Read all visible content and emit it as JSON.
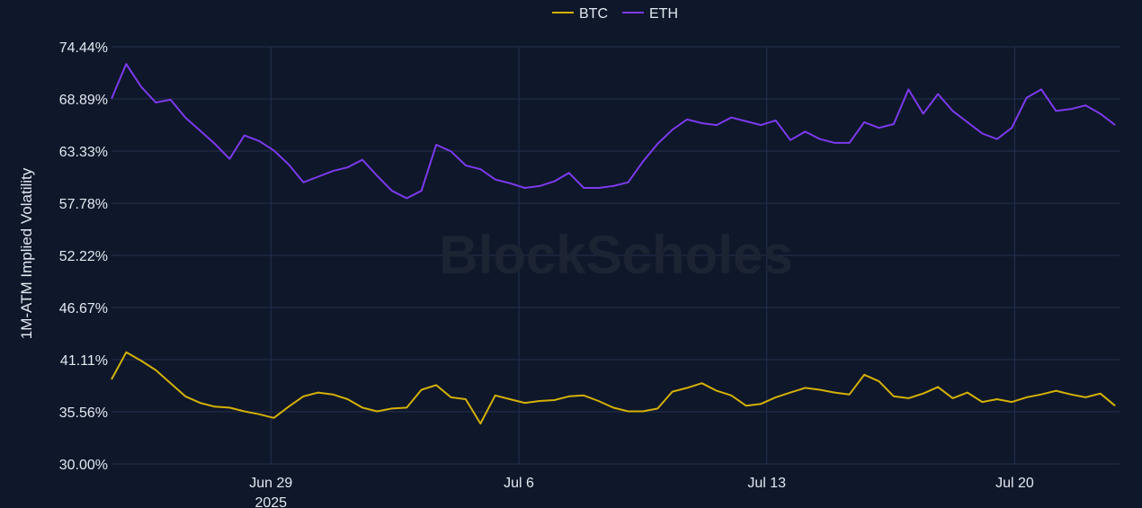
{
  "watermark": "BlockScholes",
  "colors": {
    "background": "#0f172a",
    "grid": "#24324f",
    "tick_text": "#e2e8f0",
    "watermark": "#1c2333",
    "btc": "#d4b106",
    "eth": "#7c3aed"
  },
  "chart_data": {
    "type": "line",
    "title": "",
    "xlabel": "",
    "ylabel": "1M-ATM Implied Volatility",
    "x_range": [
      "2025-06-24T12:00",
      "2025-07-22T23:00"
    ],
    "ylim": [
      30.0,
      74.44
    ],
    "y_ticks": [
      30.0,
      35.56,
      41.11,
      46.67,
      52.22,
      57.78,
      63.33,
      68.89,
      74.44
    ],
    "y_tick_labels": [
      "30.00%",
      "35.56%",
      "41.11%",
      "46.67%",
      "52.22%",
      "57.78%",
      "63.33%",
      "68.89%",
      "74.44%"
    ],
    "x_ticks": [
      "2025-06-29",
      "2025-07-06",
      "2025-07-13",
      "2025-07-20"
    ],
    "x_tick_labels": [
      "Jun 29",
      "Jul 6",
      "Jul 13",
      "Jul 20"
    ],
    "x_tick_year_label": "2025",
    "grid": true,
    "legend_position": "top-center",
    "series": [
      {
        "name": "BTC",
        "color": "#d4b106",
        "x": [
          "2025-06-24T12:00",
          "2025-06-24T22:00",
          "2025-06-25T08:00",
          "2025-06-25T18:00",
          "2025-06-26T04:00",
          "2025-06-26T14:00",
          "2025-06-27T00:00",
          "2025-06-27T10:00",
          "2025-06-27T20:00",
          "2025-06-28T06:00",
          "2025-06-28T16:00",
          "2025-06-29T02:00",
          "2025-06-29T12:00",
          "2025-06-29T22:00",
          "2025-06-30T08:00",
          "2025-06-30T18:00",
          "2025-07-01T04:00",
          "2025-07-01T14:00",
          "2025-07-02T00:00",
          "2025-07-02T10:00",
          "2025-07-02T20:00",
          "2025-07-03T06:00",
          "2025-07-03T16:00",
          "2025-07-04T02:00",
          "2025-07-04T12:00",
          "2025-07-04T22:00",
          "2025-07-05T08:00",
          "2025-07-05T18:00",
          "2025-07-06T04:00",
          "2025-07-06T14:00",
          "2025-07-07T00:00",
          "2025-07-07T10:00",
          "2025-07-07T20:00",
          "2025-07-08T06:00",
          "2025-07-08T16:00",
          "2025-07-09T02:00",
          "2025-07-09T12:00",
          "2025-07-09T22:00",
          "2025-07-10T08:00",
          "2025-07-10T18:00",
          "2025-07-11T04:00",
          "2025-07-11T14:00",
          "2025-07-12T00:00",
          "2025-07-12T10:00",
          "2025-07-12T20:00",
          "2025-07-13T06:00",
          "2025-07-13T16:00",
          "2025-07-14T02:00",
          "2025-07-14T12:00",
          "2025-07-14T22:00",
          "2025-07-15T08:00",
          "2025-07-15T18:00",
          "2025-07-16T04:00",
          "2025-07-16T14:00",
          "2025-07-17T00:00",
          "2025-07-17T10:00",
          "2025-07-17T20:00",
          "2025-07-18T06:00",
          "2025-07-18T16:00",
          "2025-07-19T02:00",
          "2025-07-19T12:00",
          "2025-07-19T22:00",
          "2025-07-20T08:00",
          "2025-07-20T18:00",
          "2025-07-21T04:00",
          "2025-07-21T14:00",
          "2025-07-22T00:00",
          "2025-07-22T10:00",
          "2025-07-22T20:00"
        ],
        "values": [
          39.0,
          41.9,
          41.0,
          40.0,
          38.6,
          37.2,
          36.5,
          36.1,
          36.0,
          35.6,
          35.3,
          34.9,
          36.1,
          37.2,
          37.6,
          37.4,
          36.9,
          36.0,
          35.6,
          35.9,
          36.0,
          37.9,
          38.4,
          37.1,
          36.9,
          34.3,
          37.3,
          36.9,
          36.5,
          36.7,
          36.8,
          37.2,
          37.3,
          36.7,
          36.0,
          35.6,
          35.6,
          35.9,
          37.7,
          38.1,
          38.6,
          37.8,
          37.3,
          36.2,
          36.4,
          37.1,
          37.6,
          38.1,
          37.9,
          37.6,
          37.4,
          39.5,
          38.8,
          37.2,
          37.0,
          37.5,
          38.2,
          37.0,
          37.6,
          36.6,
          36.9,
          36.6,
          37.1,
          37.4,
          37.8,
          37.4,
          37.1,
          37.5,
          36.2
        ]
      },
      {
        "name": "ETH",
        "color": "#7c3aed",
        "x": [
          "2025-06-24T12:00",
          "2025-06-24T22:00",
          "2025-06-25T08:00",
          "2025-06-25T18:00",
          "2025-06-26T04:00",
          "2025-06-26T14:00",
          "2025-06-27T00:00",
          "2025-06-27T10:00",
          "2025-06-27T20:00",
          "2025-06-28T06:00",
          "2025-06-28T16:00",
          "2025-06-29T02:00",
          "2025-06-29T12:00",
          "2025-06-29T22:00",
          "2025-06-30T08:00",
          "2025-06-30T18:00",
          "2025-07-01T04:00",
          "2025-07-01T14:00",
          "2025-07-02T00:00",
          "2025-07-02T10:00",
          "2025-07-02T20:00",
          "2025-07-03T06:00",
          "2025-07-03T16:00",
          "2025-07-04T02:00",
          "2025-07-04T12:00",
          "2025-07-04T22:00",
          "2025-07-05T08:00",
          "2025-07-05T18:00",
          "2025-07-06T04:00",
          "2025-07-06T14:00",
          "2025-07-07T00:00",
          "2025-07-07T10:00",
          "2025-07-07T20:00",
          "2025-07-08T06:00",
          "2025-07-08T16:00",
          "2025-07-09T02:00",
          "2025-07-09T12:00",
          "2025-07-09T22:00",
          "2025-07-10T08:00",
          "2025-07-10T18:00",
          "2025-07-11T04:00",
          "2025-07-11T14:00",
          "2025-07-12T00:00",
          "2025-07-12T10:00",
          "2025-07-12T20:00",
          "2025-07-13T06:00",
          "2025-07-13T16:00",
          "2025-07-14T02:00",
          "2025-07-14T12:00",
          "2025-07-14T22:00",
          "2025-07-15T08:00",
          "2025-07-15T18:00",
          "2025-07-16T04:00",
          "2025-07-16T14:00",
          "2025-07-17T00:00",
          "2025-07-17T10:00",
          "2025-07-17T20:00",
          "2025-07-18T06:00",
          "2025-07-18T16:00",
          "2025-07-19T02:00",
          "2025-07-19T12:00",
          "2025-07-19T22:00",
          "2025-07-20T08:00",
          "2025-07-20T18:00",
          "2025-07-21T04:00",
          "2025-07-21T14:00",
          "2025-07-22T00:00",
          "2025-07-22T10:00",
          "2025-07-22T20:00"
        ],
        "values": [
          68.9,
          72.6,
          70.2,
          68.5,
          68.8,
          66.9,
          65.5,
          64.1,
          62.5,
          65.0,
          64.4,
          63.4,
          61.9,
          60.0,
          60.6,
          61.2,
          61.6,
          62.4,
          60.7,
          59.1,
          58.3,
          59.1,
          64.0,
          63.3,
          61.8,
          61.4,
          60.3,
          59.9,
          59.4,
          59.6,
          60.1,
          61.0,
          59.4,
          59.4,
          59.6,
          60.0,
          62.2,
          64.1,
          65.6,
          66.7,
          66.3,
          66.1,
          66.9,
          66.5,
          66.1,
          66.6,
          64.5,
          65.4,
          64.6,
          64.2,
          64.2,
          66.4,
          65.8,
          66.2,
          69.9,
          67.3,
          69.4,
          67.6,
          66.4,
          65.2,
          64.6,
          65.8,
          69.0,
          69.9,
          67.6,
          67.8,
          68.2,
          67.3,
          66.1
        ]
      }
    ]
  }
}
